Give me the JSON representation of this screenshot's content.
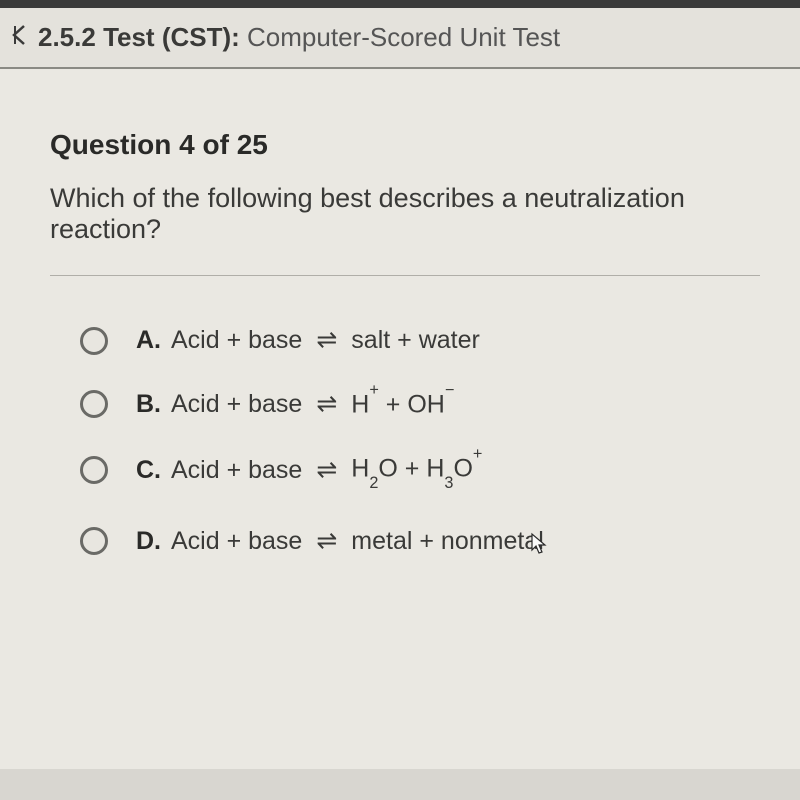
{
  "header": {
    "section_number": "2.5.2",
    "label_bold": "Test (CST):",
    "label_light": "Computer-Scored Unit Test"
  },
  "question": {
    "counter_prefix": "Question",
    "current": 4,
    "total": 25,
    "of_word": "of",
    "text": "Which of the following best describes a neutralization reaction?"
  },
  "options": [
    {
      "letter": "A.",
      "lhs": "Acid + base",
      "rhs_html": "salt + water"
    },
    {
      "letter": "B.",
      "lhs": "Acid + base",
      "rhs_html": "H<sup>+</sup> + OH<sup>−</sup>"
    },
    {
      "letter": "C.",
      "lhs": "Acid + base",
      "rhs_html": "H<sub>2</sub>O + H<sub>3</sub>O<sup>+</sup>"
    },
    {
      "letter": "D.",
      "lhs": "Acid + base",
      "rhs_html": "metal + nonmetal"
    }
  ],
  "colors": {
    "page_bg": "#eae8e2",
    "header_bg": "#e4e2dc",
    "text_dark": "#2a2a28",
    "text_body": "#3a3a38",
    "divider": "#b0aea8",
    "radio_border": "#6a6a66"
  },
  "typography": {
    "header_fontsize": 26,
    "question_number_fontsize": 28,
    "question_text_fontsize": 27,
    "option_fontsize": 25
  }
}
